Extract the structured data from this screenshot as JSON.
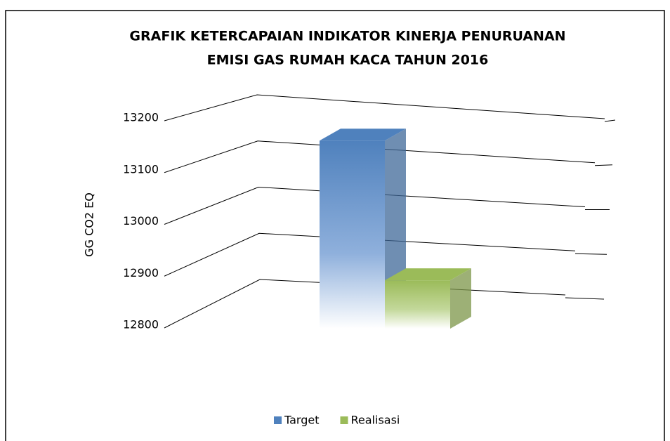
{
  "chart_data": {
    "type": "bar3d",
    "title": [
      "GRAFIK KETERCAPAIAN INDIKATOR KINERJA PENURUANAN",
      "EMISI GAS RUMAH KACA TAHUN 2016"
    ],
    "y_label": "GG CO2 EQ",
    "categories": [
      null
    ],
    "series": [
      {
        "name": "Target",
        "color": "#4f81bd",
        "values": [
          13150
        ]
      },
      {
        "name": "Realisasi",
        "color": "#9bbb59",
        "values": [
          12890
        ]
      }
    ],
    "ylim": [
      12800,
      13200
    ],
    "yticks": [
      12800,
      12900,
      13000,
      13100,
      13200
    ],
    "grid": true,
    "legend": "bottom"
  }
}
